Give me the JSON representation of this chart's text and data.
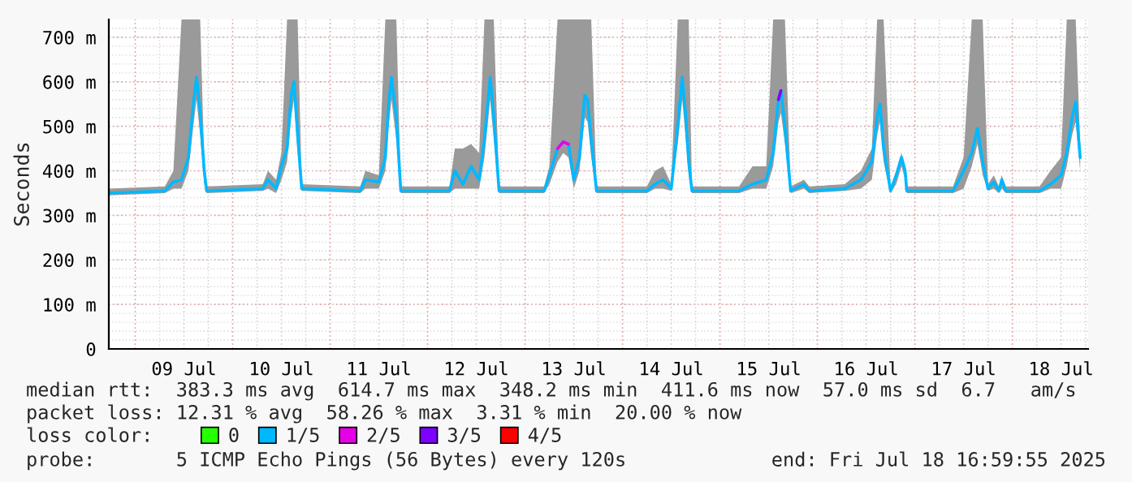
{
  "chart_data": {
    "type": "line",
    "ylabel": "Seconds",
    "ylim": [
      0,
      740
    ],
    "yticks": [
      0,
      {
        "value": 100,
        "label": "100 m"
      },
      {
        "value": 200,
        "label": "200 m"
      },
      {
        "value": 300,
        "label": "300 m"
      },
      {
        "value": 400,
        "label": "400 m"
      },
      {
        "value": 500,
        "label": "500 m"
      },
      {
        "value": 600,
        "label": "600 m"
      },
      {
        "value": 700,
        "label": "700 m"
      }
    ],
    "xlim": [
      "2025-07-08T17:30",
      "2025-07-18T18:40"
    ],
    "xticks": [
      {
        "value": "2025-07-09T00:00",
        "label": null
      },
      {
        "value": "2025-07-09T12:00",
        "label": "09 Jul"
      },
      {
        "value": "2025-07-10T00:00",
        "label": null
      },
      {
        "value": "2025-07-10T12:00",
        "label": "10 Jul"
      },
      {
        "value": "2025-07-11T00:00",
        "label": null
      },
      {
        "value": "2025-07-11T12:00",
        "label": "11 Jul"
      },
      {
        "value": "2025-07-12T00:00",
        "label": null
      },
      {
        "value": "2025-07-12T12:00",
        "label": "12 Jul"
      },
      {
        "value": "2025-07-13T00:00",
        "label": null
      },
      {
        "value": "2025-07-13T12:00",
        "label": "13 Jul"
      },
      {
        "value": "2025-07-14T00:00",
        "label": null
      },
      {
        "value": "2025-07-14T12:00",
        "label": "14 Jul"
      },
      {
        "value": "2025-07-15T00:00",
        "label": null
      },
      {
        "value": "2025-07-15T12:00",
        "label": "15 Jul"
      },
      {
        "value": "2025-07-16T00:00",
        "label": null
      },
      {
        "value": "2025-07-16T12:00",
        "label": "16 Jul"
      },
      {
        "value": "2025-07-17T00:00",
        "label": null
      },
      {
        "value": "2025-07-17T12:00",
        "label": "17 Jul"
      },
      {
        "value": "2025-07-18T00:00",
        "label": null
      },
      {
        "value": "2025-07-18T12:00",
        "label": "18 Jul"
      }
    ],
    "grid": true,
    "legend": "bottom",
    "x": [
      "2025-07-08T17:30",
      "2025-07-09T07:18",
      "2025-07-09T09:24",
      "2025-07-09T11:24",
      "2025-07-09T13:06",
      "2025-07-09T14:18",
      "2025-07-09T15:06",
      "2025-07-09T16:00",
      "2025-07-09T17:00",
      "2025-07-09T17:36",
      "2025-07-10T07:24",
      "2025-07-10T08:42",
      "2025-07-10T10:42",
      "2025-07-10T12:00",
      "2025-07-10T13:24",
      "2025-07-10T14:24",
      "2025-07-10T15:06",
      "2025-07-10T16:00",
      "2025-07-10T17:00",
      "2025-07-11T07:24",
      "2025-07-11T08:42",
      "2025-07-11T12:00",
      "2025-07-11T13:36",
      "2025-07-11T14:24",
      "2025-07-11T15:06",
      "2025-07-11T16:18",
      "2025-07-11T17:24",
      "2025-07-12T05:24",
      "2025-07-12T06:42",
      "2025-07-12T08:42",
      "2025-07-12T10:42",
      "2025-07-12T12:42",
      "2025-07-12T14:00",
      "2025-07-12T15:24",
      "2025-07-12T16:18",
      "2025-07-12T17:36",
      "2025-07-13T04:42",
      "2025-07-13T06:00",
      "2025-07-13T08:00",
      "2025-07-13T09:24",
      "2025-07-13T10:42",
      "2025-07-13T12:00",
      "2025-07-13T13:24",
      "2025-07-13T14:42",
      "2025-07-13T15:24",
      "2025-07-13T16:18",
      "2025-07-13T17:36",
      "2025-07-14T06:00",
      "2025-07-14T08:00",
      "2025-07-14T10:00",
      "2025-07-14T12:00",
      "2025-07-14T13:36",
      "2025-07-14T14:42",
      "2025-07-14T15:30",
      "2025-07-14T16:18",
      "2025-07-14T17:06",
      "2025-07-15T04:42",
      "2025-07-15T08:00",
      "2025-07-15T11:24",
      "2025-07-15T13:06",
      "2025-07-15T14:24",
      "2025-07-15T15:00",
      "2025-07-15T16:00",
      "2025-07-15T17:24",
      "2025-07-15T20:42",
      "2025-07-15T22:00",
      "2025-07-16T06:42",
      "2025-07-16T10:42",
      "2025-07-16T13:24",
      "2025-07-16T14:42",
      "2025-07-16T15:24",
      "2025-07-16T16:18",
      "2025-07-16T18:00",
      "2025-07-16T19:24",
      "2025-07-16T20:42",
      "2025-07-16T21:36",
      "2025-07-16T22:00",
      "2025-07-17T09:24",
      "2025-07-17T12:00",
      "2025-07-17T14:00",
      "2025-07-17T15:24",
      "2025-07-17T16:42",
      "2025-07-17T18:00",
      "2025-07-17T19:24",
      "2025-07-17T20:42",
      "2025-07-17T21:24",
      "2025-07-17T22:24",
      "2025-07-18T06:42",
      "2025-07-18T09:24",
      "2025-07-18T12:00",
      "2025-07-18T13:24",
      "2025-07-18T14:42",
      "2025-07-18T15:36",
      "2025-07-18T16:42"
    ],
    "series": [
      {
        "name": "0",
        "color": "#26ff00",
        "values": [
          null,
          null,
          null,
          null,
          null,
          null,
          null,
          null,
          null,
          null,
          null,
          null,
          null,
          null,
          null,
          null,
          null,
          null,
          null,
          null,
          null,
          null,
          null,
          null,
          null,
          null,
          null,
          null,
          null,
          null,
          null,
          null,
          null,
          null,
          null,
          null,
          null,
          null,
          null,
          null,
          null,
          null,
          null,
          null,
          null,
          null,
          null,
          null,
          null,
          null,
          null,
          null,
          null,
          null,
          null,
          null,
          null,
          null,
          null,
          null,
          null,
          null,
          null,
          null,
          null,
          null,
          null,
          null,
          null,
          null,
          null,
          null,
          null,
          null,
          null,
          null,
          null,
          null,
          null,
          null,
          null,
          null,
          null,
          null,
          null,
          null,
          null,
          null,
          null,
          null,
          null,
          null,
          null,
          null
        ]
      },
      {
        "name": "1/5",
        "color": "#00b8ff",
        "values": [
          350,
          355,
          375,
          380,
          430,
          550,
          610,
          530,
          400,
          355,
          360,
          380,
          360,
          410,
          450,
          570,
          600,
          480,
          360,
          355,
          380,
          375,
          430,
          550,
          610,
          520,
          355,
          355,
          400,
          370,
          410,
          380,
          470,
          610,
          520,
          355,
          355,
          390,
          450,
          465,
          460,
          380,
          430,
          570,
          560,
          470,
          355,
          355,
          370,
          380,
          360,
          500,
          610,
          530,
          420,
          355,
          355,
          370,
          380,
          440,
          560,
          580,
          500,
          355,
          370,
          355,
          360,
          380,
          420,
          520,
          550,
          450,
          355,
          390,
          430,
          400,
          355,
          355,
          400,
          440,
          495,
          420,
          360,
          375,
          355,
          380,
          355,
          355,
          370,
          390,
          440,
          520,
          555,
          430
        ],
        "lower": [
          345,
          350,
          360,
          360,
          400,
          500,
          560,
          480,
          370,
          350,
          355,
          360,
          350,
          380,
          420,
          520,
          560,
          440,
          355,
          350,
          360,
          360,
          400,
          500,
          560,
          470,
          350,
          350,
          360,
          360,
          360,
          360,
          430,
          560,
          470,
          350,
          350,
          370,
          420,
          440,
          430,
          360,
          400,
          520,
          510,
          430,
          350,
          350,
          360,
          360,
          355,
          460,
          560,
          480,
          390,
          350,
          350,
          360,
          360,
          410,
          510,
          530,
          460,
          350,
          360,
          350,
          355,
          360,
          380,
          480,
          510,
          420,
          350,
          370,
          410,
          380,
          350,
          350,
          360,
          410,
          460,
          390,
          355,
          360,
          350,
          360,
          350,
          350,
          360,
          360,
          410,
          480,
          510,
          400
        ],
        "upper": [
          360,
          365,
          400,
          740,
          740,
          740,
          740,
          740,
          420,
          365,
          370,
          400,
          380,
          440,
          740,
          740,
          740,
          740,
          370,
          365,
          400,
          390,
          740,
          740,
          740,
          740,
          365,
          365,
          450,
          450,
          460,
          440,
          740,
          740,
          740,
          365,
          365,
          410,
          740,
          740,
          740,
          740,
          740,
          740,
          740,
          740,
          365,
          365,
          400,
          410,
          370,
          740,
          740,
          740,
          740,
          365,
          365,
          410,
          410,
          740,
          740,
          740,
          740,
          365,
          380,
          365,
          370,
          400,
          450,
          740,
          740,
          740,
          365,
          400,
          440,
          410,
          365,
          365,
          430,
          740,
          740,
          740,
          370,
          390,
          365,
          390,
          365,
          365,
          400,
          430,
          740,
          740,
          740,
          460
        ]
      },
      {
        "name": "2/5",
        "color": "#e600e6",
        "x": [
          "2025-07-13T08:00",
          "2025-07-13T09:24",
          "2025-07-13T10:42"
        ],
        "values": [
          450,
          465,
          460
        ]
      },
      {
        "name": "3/5",
        "color": "#7e00ff",
        "x": [
          "2025-07-15T14:24",
          "2025-07-15T15:00"
        ],
        "values": [
          560,
          580
        ]
      },
      {
        "name": "4/5",
        "color": "#ff0000",
        "values": [
          null,
          null,
          null,
          null,
          null,
          null,
          null,
          null,
          null,
          null,
          null,
          null,
          null,
          null,
          null,
          null,
          null,
          null,
          null,
          null,
          null,
          null,
          null,
          null,
          null,
          null,
          null,
          null,
          null,
          null,
          null,
          null,
          null,
          null,
          null,
          null,
          null,
          null,
          null,
          null,
          null,
          null,
          null,
          null,
          null,
          null,
          null,
          null,
          null,
          null,
          null,
          null,
          null,
          null,
          null,
          null,
          null,
          null,
          null,
          null,
          null,
          null,
          null,
          null,
          null,
          null,
          null,
          null,
          null,
          null,
          null,
          null,
          null,
          null,
          null,
          null,
          null,
          null,
          null,
          null,
          null,
          null,
          null,
          null,
          null,
          null,
          null,
          null,
          null,
          null,
          null,
          null,
          null,
          null
        ]
      }
    ],
    "annotations": [
      "median rtt:  383.3 ms avg  614.7 ms max  348.2 ms min  411.6 ms now  57.0 ms sd  6.7   am/s",
      "packet loss: 12.31 % avg  58.26 % max  3.31 % min  20.00 % now",
      "loss color:",
      "probe:       5 ICMP Echo Pings (56 Bytes) every 120s",
      "end: Fri Jul 18 16:59:55 2025"
    ]
  }
}
